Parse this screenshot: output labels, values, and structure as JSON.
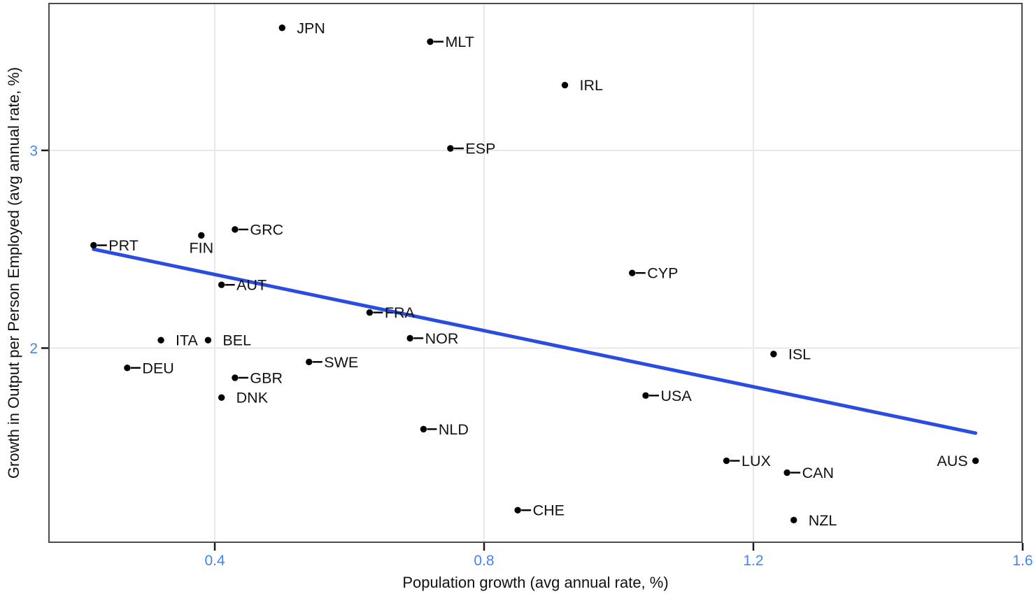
{
  "chart_data": {
    "type": "scatter",
    "title": "",
    "xlabel": "Population growth (avg annual rate, %)",
    "ylabel": "Growth in Output per Person Employed (avg annual rate, %)",
    "x_range": [
      0.1537,
      1.599
    ],
    "y_range": [
      1.018,
      3.743
    ],
    "x_ticks": [
      {
        "value": 0.4,
        "label": "0.4"
      },
      {
        "value": 0.8,
        "label": "0.8"
      },
      {
        "value": 1.2,
        "label": "1.2"
      },
      {
        "value": 1.6,
        "label": "1.6"
      }
    ],
    "y_ticks": [
      {
        "value": 2,
        "label": "2"
      },
      {
        "value": 3,
        "label": "3"
      }
    ],
    "grid": true,
    "legend": "none",
    "points": [
      {
        "code": "JPN",
        "x": 0.5,
        "y": 3.62,
        "label_pos": "gap"
      },
      {
        "code": "MLT",
        "x": 0.72,
        "y": 3.55,
        "label_pos": "connector"
      },
      {
        "code": "IRL",
        "x": 0.92,
        "y": 3.33,
        "label_pos": "gap"
      },
      {
        "code": "ESP",
        "x": 0.75,
        "y": 3.01,
        "label_pos": "connector"
      },
      {
        "code": "GRC",
        "x": 0.43,
        "y": 2.6,
        "label_pos": "connector"
      },
      {
        "code": "FIN",
        "x": 0.38,
        "y": 2.57,
        "label_pos": "below"
      },
      {
        "code": "PRT",
        "x": 0.22,
        "y": 2.52,
        "label_pos": "connector"
      },
      {
        "code": "CYP",
        "x": 1.02,
        "y": 2.38,
        "label_pos": "connector"
      },
      {
        "code": "AUT",
        "x": 0.41,
        "y": 2.32,
        "label_pos": "connector"
      },
      {
        "code": "FRA",
        "x": 0.63,
        "y": 2.18,
        "label_pos": "connector"
      },
      {
        "code": "NOR",
        "x": 0.69,
        "y": 2.05,
        "label_pos": "connector"
      },
      {
        "code": "ITA",
        "x": 0.32,
        "y": 2.04,
        "label_pos": "gap"
      },
      {
        "code": "BEL",
        "x": 0.39,
        "y": 2.04,
        "label_pos": "gap"
      },
      {
        "code": "ISL",
        "x": 1.23,
        "y": 1.97,
        "label_pos": "gap"
      },
      {
        "code": "SWE",
        "x": 0.54,
        "y": 1.93,
        "label_pos": "connector"
      },
      {
        "code": "DEU",
        "x": 0.27,
        "y": 1.9,
        "label_pos": "connector"
      },
      {
        "code": "GBR",
        "x": 0.43,
        "y": 1.85,
        "label_pos": "connector"
      },
      {
        "code": "USA",
        "x": 1.04,
        "y": 1.76,
        "label_pos": "connector"
      },
      {
        "code": "DNK",
        "x": 0.41,
        "y": 1.75,
        "label_pos": "gap"
      },
      {
        "code": "NLD",
        "x": 0.71,
        "y": 1.59,
        "label_pos": "connector"
      },
      {
        "code": "AUS",
        "x": 1.53,
        "y": 1.43,
        "label_pos": "left"
      },
      {
        "code": "LUX",
        "x": 1.16,
        "y": 1.43,
        "label_pos": "connector"
      },
      {
        "code": "CAN",
        "x": 1.25,
        "y": 1.37,
        "label_pos": "connector"
      },
      {
        "code": "CHE",
        "x": 0.85,
        "y": 1.18,
        "label_pos": "connector"
      },
      {
        "code": "NZL",
        "x": 1.26,
        "y": 1.13,
        "label_pos": "gap"
      }
    ],
    "trend_line": {
      "x1": 0.22,
      "y1": 2.5,
      "x2": 1.53,
      "y2": 1.57
    },
    "colors": {
      "tick_label": "#4285f4",
      "trend": "#2a4ce0",
      "point": "#000000",
      "point_label": "#111111",
      "grid": "#e8e8e8",
      "frame": "#4c4c4c",
      "tick_mark": "#1a1a1a",
      "background": "#ffffff"
    }
  }
}
